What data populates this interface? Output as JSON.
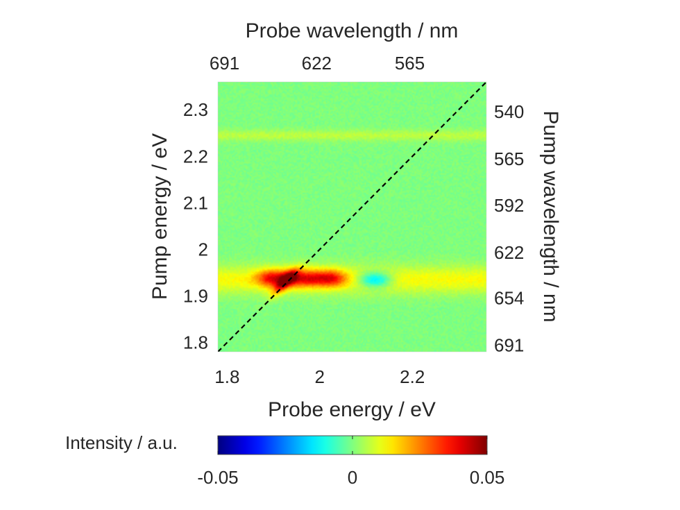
{
  "chart_data": {
    "type": "heatmap",
    "title": "",
    "xlabel": "Probe energy / eV",
    "ylabel": "Pump energy / eV",
    "x2label": "Probe wavelength / nm",
    "y2label": "Pump wavelength / nm",
    "xlim": [
      1.78,
      2.36
    ],
    "ylim": [
      1.78,
      2.36
    ],
    "xticks": [
      {
        "value": 1.8,
        "label": "1.8"
      },
      {
        "value": 2.0,
        "label": "2"
      },
      {
        "value": 2.2,
        "label": "2.2"
      }
    ],
    "yticks": [
      {
        "value": 1.8,
        "label": "1.8"
      },
      {
        "value": 1.9,
        "label": "1.9"
      },
      {
        "value": 2.0,
        "label": "2"
      },
      {
        "value": 2.1,
        "label": "2.1"
      },
      {
        "value": 2.2,
        "label": "2.2"
      },
      {
        "value": 2.3,
        "label": "2.3"
      }
    ],
    "x2ticks": [
      {
        "value": 691,
        "label": "691"
      },
      {
        "value": 622,
        "label": "622"
      },
      {
        "value": 565,
        "label": "565"
      }
    ],
    "y2ticks": [
      {
        "value": 691,
        "label": "691"
      },
      {
        "value": 654,
        "label": "654"
      },
      {
        "value": 622,
        "label": "622"
      },
      {
        "value": 592,
        "label": "592"
      },
      {
        "value": 565,
        "label": "565"
      },
      {
        "value": 540,
        "label": "540"
      }
    ],
    "diagonal": {
      "style": "dashed",
      "color": "#000000"
    },
    "background_value": 0.0,
    "features": [
      {
        "name": "faint horizontal stripe",
        "probe_range": [
          1.78,
          2.36
        ],
        "pump": 2.245,
        "pump_width": 0.012,
        "value": 0.006
      },
      {
        "name": "positive band",
        "probe_range": [
          1.78,
          2.36
        ],
        "pump": 1.935,
        "pump_width": 0.03,
        "value": 0.012
      },
      {
        "name": "diagonal peak",
        "probe": 1.925,
        "pump": 1.93,
        "value": 0.05
      },
      {
        "name": "positive lobe",
        "probe_range": [
          1.86,
          2.06
        ],
        "pump": 1.938,
        "value": 0.042
      },
      {
        "name": "negative lobe",
        "probe": 2.12,
        "pump": 1.935,
        "value": -0.025
      }
    ],
    "colorbar": {
      "label": "Intensity / a.u.",
      "colormap": "jet",
      "clim": [
        -0.05,
        0.05
      ],
      "ticks": [
        {
          "value": -0.05,
          "label": "-0.05"
        },
        {
          "value": 0,
          "label": "0"
        },
        {
          "value": 0.05,
          "label": "0.05"
        }
      ]
    }
  }
}
